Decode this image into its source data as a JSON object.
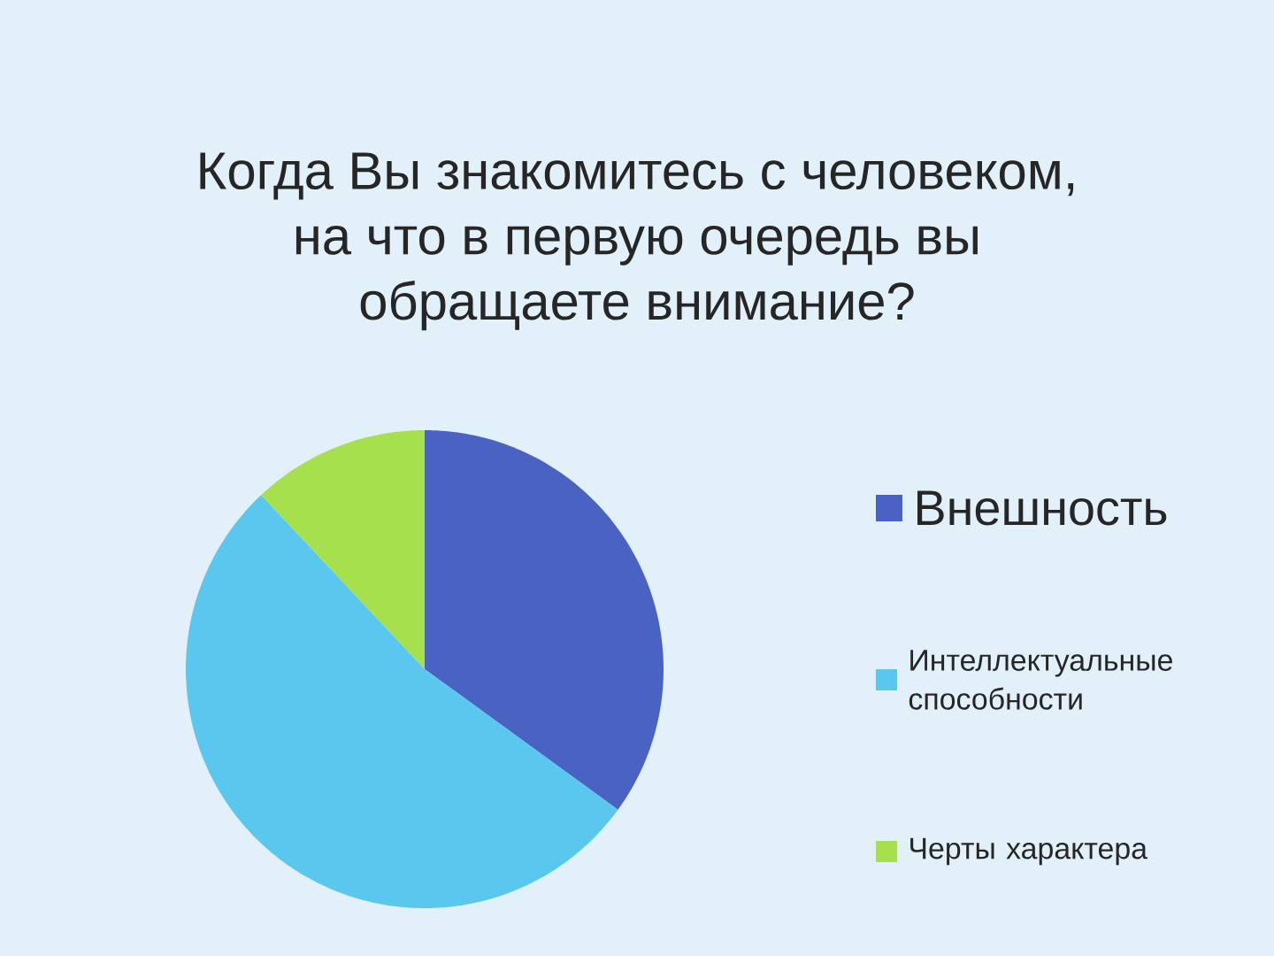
{
  "chart_data": {
    "type": "pie",
    "title": "Когда Вы знакомитесь с человеком, на что в первую очередь вы обращаете внимание?",
    "categories": [
      "Внешность",
      "Интеллектуальные способности",
      "Черты характера"
    ],
    "values": [
      35,
      53,
      12
    ],
    "colors": [
      "#4a62c2",
      "#5ac8ee",
      "#a6e04c"
    ],
    "legend": "right"
  }
}
